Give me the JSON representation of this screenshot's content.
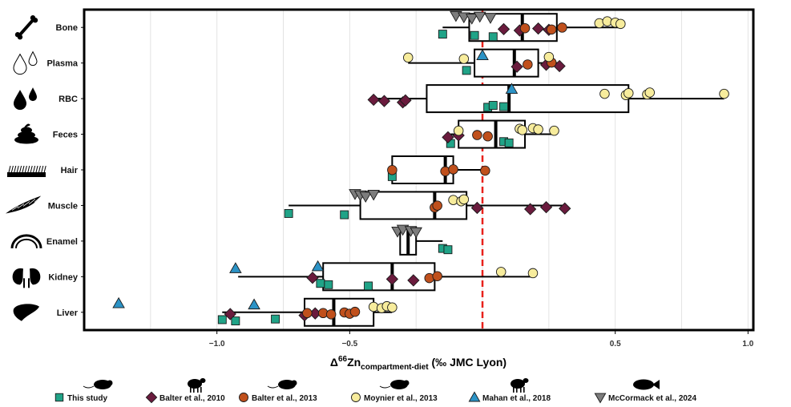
{
  "chart_data": {
    "type": "box",
    "xlabel": {
      "prefix": "Δ",
      "sup": "66",
      "main": "Zn",
      "sub": "compartment-diet",
      "suffix": " (‰ JMC Lyon)"
    },
    "xlim": [
      -1.5,
      1.02
    ],
    "xticks": [
      -1.0,
      -0.5,
      0.5,
      1.0
    ],
    "xtick_labels": [
      "−1.0",
      "−0.5",
      "0.5",
      "1.0"
    ],
    "reference_line": {
      "x": 0,
      "style": "dashed",
      "color": "#e8211b"
    },
    "grid": true,
    "categories": [
      "Bone",
      "Plasma",
      "RBC",
      "Feces",
      "Hair",
      "Muscle",
      "Enamel",
      "Kidney",
      "Liver"
    ],
    "category_icons": [
      "bone-icon",
      "plasma-drops-icon",
      "rbc-drops-icon",
      "feces-icon",
      "hair-icon",
      "muscle-icon",
      "enamel-icon",
      "kidney-icon",
      "liver-icon"
    ],
    "boxes": [
      {
        "category": "Bone",
        "whisker_low": -0.15,
        "q1": -0.05,
        "median": 0.15,
        "q3": 0.28,
        "whisker_high": 0.52
      },
      {
        "category": "Plasma",
        "whisker_low": -0.28,
        "q1": -0.03,
        "median": 0.12,
        "q3": 0.21,
        "whisker_high": 0.29
      },
      {
        "category": "RBC",
        "whisker_low": -0.41,
        "q1": -0.21,
        "median": 0.1,
        "q3": 0.55,
        "whisker_high": 0.91
      },
      {
        "category": "Feces",
        "whisker_low": -0.12,
        "q1": -0.09,
        "median": 0.05,
        "q3": 0.16,
        "whisker_high": 0.27
      },
      {
        "category": "Hair",
        "whisker_low": -0.34,
        "q1": -0.34,
        "median": -0.14,
        "q3": -0.11,
        "whisker_high": 0.01
      },
      {
        "category": "Muscle",
        "whisker_low": -0.73,
        "q1": -0.46,
        "median": -0.18,
        "q3": -0.06,
        "whisker_high": 0.31
      },
      {
        "category": "Enamel",
        "whisker_low": -0.31,
        "q1": -0.31,
        "median": -0.28,
        "q3": -0.25,
        "whisker_high": -0.15
      },
      {
        "category": "Kidney",
        "whisker_low": -0.92,
        "q1": -0.6,
        "median": -0.34,
        "q3": -0.18,
        "whisker_high": 0.2
      },
      {
        "category": "Liver",
        "whisker_low": -0.98,
        "q1": -0.67,
        "median": -0.56,
        "q3": -0.41,
        "whisker_high": -0.34
      }
    ],
    "series": [
      {
        "name": "This study",
        "marker": "square",
        "color": "#20a387",
        "points": [
          [
            "Bone",
            -0.15
          ],
          [
            "Bone",
            -0.03
          ],
          [
            "Bone",
            0.04
          ],
          [
            "Plasma",
            -0.06
          ],
          [
            "RBC",
            0.02
          ],
          [
            "RBC",
            0.04
          ],
          [
            "RBC",
            0.08
          ],
          [
            "Feces",
            -0.12
          ],
          [
            "Feces",
            0.08
          ],
          [
            "Feces",
            0.1
          ],
          [
            "Hair",
            -0.34
          ],
          [
            "Muscle",
            -0.73
          ],
          [
            "Muscle",
            -0.52
          ],
          [
            "Enamel",
            -0.15
          ],
          [
            "Enamel",
            -0.13
          ],
          [
            "Kidney",
            -0.61
          ],
          [
            "Kidney",
            -0.58
          ],
          [
            "Kidney",
            -0.43
          ],
          [
            "Liver",
            -0.98
          ],
          [
            "Liver",
            -0.93
          ],
          [
            "Liver",
            -0.78
          ]
        ]
      },
      {
        "name": "Balter et al., 2010",
        "marker": "diamond",
        "color": "#6a1b3d",
        "points": [
          [
            "Bone",
            0.08
          ],
          [
            "Bone",
            0.14
          ],
          [
            "Bone",
            0.21
          ],
          [
            "Bone",
            0.25
          ],
          [
            "Plasma",
            0.13
          ],
          [
            "Plasma",
            0.24
          ],
          [
            "Plasma",
            0.29
          ],
          [
            "RBC",
            -0.41
          ],
          [
            "RBC",
            -0.37
          ],
          [
            "RBC",
            -0.3
          ],
          [
            "RBC",
            -0.29
          ],
          [
            "Feces",
            -0.13
          ],
          [
            "Feces",
            -0.09
          ],
          [
            "Muscle",
            -0.02
          ],
          [
            "Muscle",
            0.18
          ],
          [
            "Muscle",
            0.24
          ],
          [
            "Muscle",
            0.31
          ],
          [
            "Kidney",
            -0.64
          ],
          [
            "Kidney",
            -0.34
          ],
          [
            "Kidney",
            -0.26
          ],
          [
            "Liver",
            -0.95
          ],
          [
            "Liver",
            -0.67
          ],
          [
            "Liver",
            -0.63
          ]
        ]
      },
      {
        "name": "Balter et al., 2013",
        "marker": "circle",
        "color": "#c0501c",
        "points": [
          [
            "Bone",
            0.16
          ],
          [
            "Bone",
            0.26
          ],
          [
            "Bone",
            0.3
          ],
          [
            "Plasma",
            0.17
          ],
          [
            "Plasma",
            0.26
          ],
          [
            "Feces",
            -0.02
          ],
          [
            "Feces",
            0.02
          ],
          [
            "Hair",
            -0.34
          ],
          [
            "Hair",
            -0.14
          ],
          [
            "Hair",
            -0.11
          ],
          [
            "Hair",
            0.01
          ],
          [
            "Muscle",
            -0.18
          ],
          [
            "Muscle",
            -0.17
          ],
          [
            "Kidney",
            -0.2
          ],
          [
            "Kidney",
            -0.17
          ],
          [
            "Liver",
            -0.6
          ],
          [
            "Liver",
            -0.57
          ],
          [
            "Liver",
            -0.52
          ],
          [
            "Liver",
            -0.5
          ],
          [
            "Liver",
            -0.48
          ],
          [
            "Liver",
            -0.66
          ]
        ]
      },
      {
        "name": "Moynier et al., 2013",
        "marker": "circle",
        "color": "#f7ec9c",
        "points": [
          [
            "Bone",
            0.44
          ],
          [
            "Bone",
            0.47
          ],
          [
            "Bone",
            0.5
          ],
          [
            "Bone",
            0.52
          ],
          [
            "Plasma",
            -0.28
          ],
          [
            "Plasma",
            -0.07
          ],
          [
            "Plasma",
            0.25
          ],
          [
            "RBC",
            0.46
          ],
          [
            "RBC",
            0.54
          ],
          [
            "RBC",
            0.55
          ],
          [
            "RBC",
            0.62
          ],
          [
            "RBC",
            0.63
          ],
          [
            "RBC",
            0.91
          ],
          [
            "Feces",
            -0.09
          ],
          [
            "Feces",
            0.14
          ],
          [
            "Feces",
            0.15
          ],
          [
            "Feces",
            0.19
          ],
          [
            "Feces",
            0.21
          ],
          [
            "Feces",
            0.27
          ],
          [
            "Muscle",
            -0.11
          ],
          [
            "Muscle",
            -0.08
          ],
          [
            "Muscle",
            -0.07
          ],
          [
            "Kidney",
            0.07
          ],
          [
            "Kidney",
            0.19
          ],
          [
            "Liver",
            -0.41
          ],
          [
            "Liver",
            -0.38
          ],
          [
            "Liver",
            -0.36
          ],
          [
            "Liver",
            -0.34
          ]
        ]
      },
      {
        "name": "Mahan et al., 2018",
        "marker": "triangle-up",
        "color": "#2c93c6",
        "points": [
          [
            "Plasma",
            0.0
          ],
          [
            "RBC",
            0.11
          ],
          [
            "Kidney",
            -0.93
          ],
          [
            "Kidney",
            -0.62
          ],
          [
            "Liver",
            -1.37
          ],
          [
            "Liver",
            -0.86
          ]
        ]
      },
      {
        "name": "McCormack et al., 2024",
        "marker": "triangle-down",
        "color": "#7d7d7d",
        "points": [
          [
            "Bone",
            -0.1
          ],
          [
            "Bone",
            -0.07
          ],
          [
            "Bone",
            -0.04
          ],
          [
            "Bone",
            -0.01
          ],
          [
            "Bone",
            0.03
          ],
          [
            "Muscle",
            -0.48
          ],
          [
            "Muscle",
            -0.46
          ],
          [
            "Muscle",
            -0.44
          ],
          [
            "Muscle",
            -0.41
          ],
          [
            "Enamel",
            -0.32
          ],
          [
            "Enamel",
            -0.3
          ],
          [
            "Enamel",
            -0.27
          ],
          [
            "Enamel",
            -0.25
          ]
        ]
      }
    ],
    "legend": {
      "position": "bottom",
      "entries": [
        {
          "label": "This study",
          "icon": "mouse-icon"
        },
        {
          "label": "Balter et al., 2010",
          "icon": "sheep-icon"
        },
        {
          "label": "Balter et al., 2013",
          "icon": "mouse-icon"
        },
        {
          "label": "Moynier et al., 2013",
          "icon": "mouse-icon"
        },
        {
          "label": "Mahan et al., 2018",
          "icon": "sheep-icon"
        },
        {
          "label": "McCormack et al., 2024",
          "icon": "fish-icon"
        }
      ]
    }
  }
}
